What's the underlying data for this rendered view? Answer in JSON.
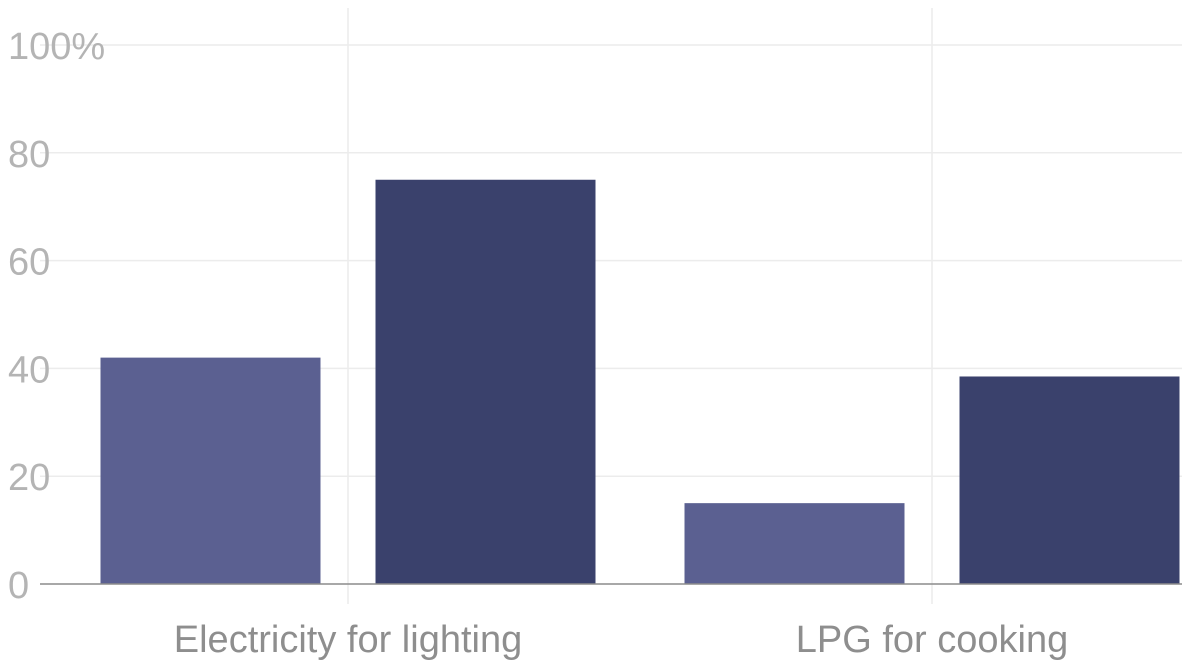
{
  "chart_data": {
    "type": "bar",
    "categories": [
      "Electricity for lighting",
      "LPG for cooking"
    ],
    "series": [
      {
        "values": [
          42,
          15
        ],
        "color": "#5b6091"
      },
      {
        "values": [
          75,
          38.5
        ],
        "color": "#3a416c"
      }
    ],
    "y_ticks": [
      "0",
      "20",
      "40",
      "60",
      "80",
      "100%"
    ],
    "y_tick_values": [
      0,
      20,
      40,
      60,
      80,
      100
    ],
    "ylim": [
      0,
      100
    ],
    "grid": true,
    "legend": "none",
    "title": "",
    "xlabel": "",
    "ylabel": ""
  }
}
